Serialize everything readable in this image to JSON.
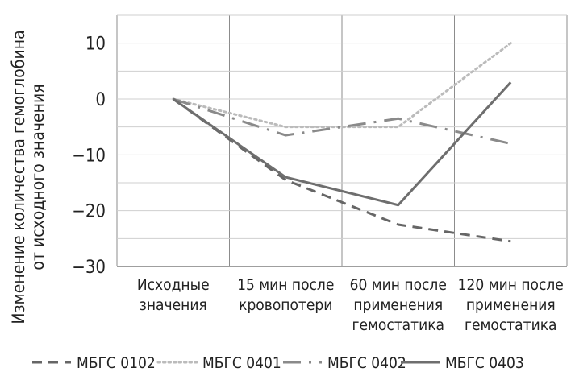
{
  "chart_data": {
    "type": "line",
    "title": "",
    "xlabel": "",
    "ylabel": [
      "Изменение количества гемоглобина",
      "от исходного значения"
    ],
    "ylim": [
      -30,
      15
    ],
    "yticks": [
      10,
      0,
      -10,
      -20,
      -30
    ],
    "grid": true,
    "legend_position": "bottom",
    "categories": [
      [
        "Исходные",
        "значения"
      ],
      [
        "15 мин после",
        "кровопотери"
      ],
      [
        "60 мин после",
        "применения",
        "гемостатика"
      ],
      [
        "120 мин после",
        "применения",
        "гемостатика"
      ]
    ],
    "series": [
      {
        "name": "МБГС 0102",
        "values": [
          0,
          -14.5,
          -22.5,
          -25.5
        ],
        "color": "#666666",
        "dash": "dashed"
      },
      {
        "name": "МБГС 0401",
        "values": [
          0,
          -5,
          -5,
          10
        ],
        "color": "#bbbbbb",
        "dash": "dotted"
      },
      {
        "name": "МБГС 0402",
        "values": [
          0,
          -6.5,
          -3.5,
          -8
        ],
        "color": "#8a8a8a",
        "dash": "dashdot"
      },
      {
        "name": "МБГС 0403",
        "values": [
          0,
          -14,
          -19,
          3
        ],
        "color": "#6e6e6e",
        "dash": "solid"
      }
    ]
  }
}
